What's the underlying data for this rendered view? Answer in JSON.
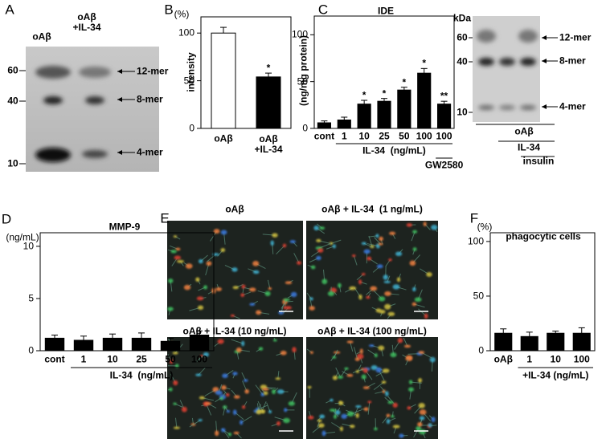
{
  "panels": {
    "letters": [
      "A",
      "B",
      "C",
      "D",
      "E",
      "F"
    ],
    "A": {
      "lanes": [
        "oAβ",
        "oAβ\n+IL-34"
      ],
      "markers": [
        "60",
        "40",
        "10"
      ],
      "bands": [
        "12-mer",
        "8-mer",
        "4-mer"
      ]
    },
    "C_blot": {
      "kda": "kDa",
      "markers": [
        "60",
        "40",
        "10"
      ],
      "bands": [
        "12-mer",
        "8-mer",
        "4-mer"
      ],
      "conditions": [
        "oAβ",
        "IL-34",
        "insulin"
      ]
    },
    "E": {
      "images": [
        "oAβ",
        "oAβ + IL-34  (1 ng/mL)",
        "oAβ + IL-34 (10 ng/mL)",
        "oAβ + IL-34 (100 ng/mL)"
      ]
    }
  },
  "chart_data": [
    {
      "type": "bar",
      "unit": "(%)",
      "ylabel": "intensity",
      "categories": [
        "oAβ",
        "oAβ\n+IL-34"
      ],
      "values": [
        100,
        54
      ],
      "errors": [
        6,
        4
      ],
      "colors": [
        "#ffffff",
        "#000000"
      ],
      "significance": [
        null,
        "*"
      ],
      "ylim": [
        0,
        117
      ],
      "yticks": [
        0,
        50,
        100
      ]
    },
    {
      "type": "bar",
      "title": "IDE",
      "ylabel": "(ng/mg protein)",
      "categories": [
        "cont",
        "1",
        "10",
        "25",
        "50",
        "100",
        "100"
      ],
      "values": [
        6,
        9,
        26,
        29,
        41,
        59,
        26
      ],
      "errors": [
        2,
        3,
        4,
        3,
        3,
        5,
        3
      ],
      "color": "#000000",
      "significance": [
        null,
        null,
        "*",
        "*",
        "*",
        "*",
        "**"
      ],
      "groups": [
        "IL-34  (ng/mL)",
        "GW2580"
      ],
      "ylim": [
        0,
        120
      ],
      "yticks": [
        0,
        50,
        100
      ]
    },
    {
      "type": "bar",
      "title": "MMP-9",
      "unit": "(ng/mL)",
      "categories": [
        "cont",
        "1",
        "10",
        "25",
        "50",
        "100"
      ],
      "values": [
        1.2,
        1.0,
        1.2,
        1.2,
        0.9,
        1.5
      ],
      "errors": [
        0.3,
        0.4,
        0.4,
        0.5,
        0.3,
        0.4
      ],
      "color": "#000000",
      "groups": [
        "IL-34  (ng/mL)"
      ],
      "ylim": [
        0,
        11.3
      ],
      "yticks": [
        0,
        5,
        10
      ]
    },
    {
      "type": "bar",
      "title": "phagocytic cells",
      "unit": "(%)",
      "categories": [
        "oAβ",
        "1",
        "10",
        "100"
      ],
      "values": [
        16,
        13,
        16,
        16
      ],
      "errors": [
        4,
        4,
        2,
        5
      ],
      "color": "#000000",
      "groups": [
        "+IL-34 (ng/mL)"
      ],
      "ylim": [
        0,
        108
      ],
      "yticks": [
        0,
        50,
        100
      ]
    }
  ]
}
